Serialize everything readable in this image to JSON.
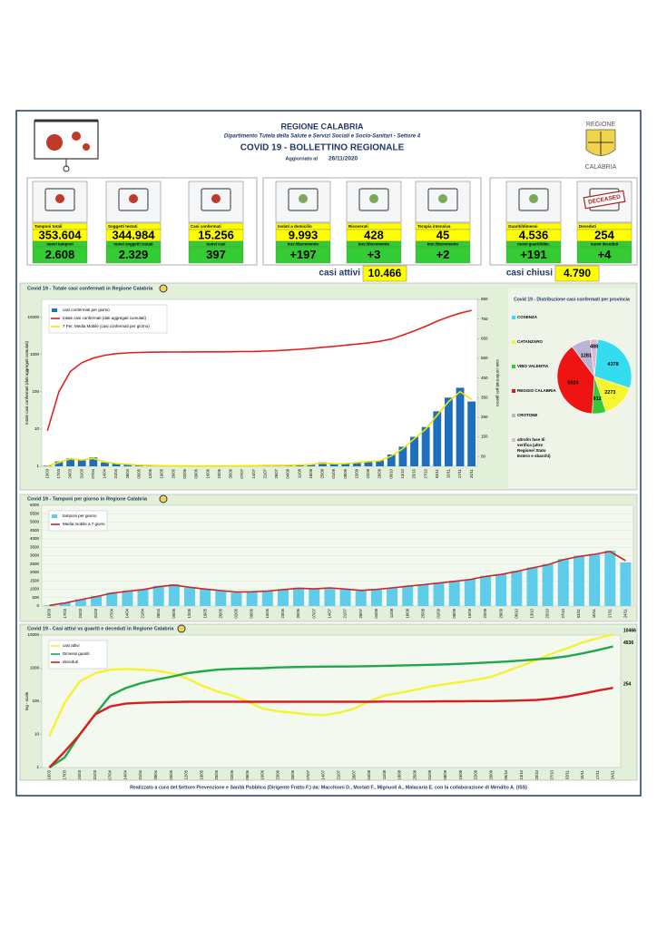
{
  "header": {
    "title": "REGIONE CALABRIA",
    "department": "Dipartimento Tutela della Salute e Servizi Sociali e Socio-Sanitari - Settore 4",
    "bulletin": "COVID 19 - BOLLETTINO REGIONALE",
    "updated_label": "Aggiornato al",
    "date": "26/11/2020",
    "logo_top": "REGIONE",
    "logo_bottom": "CALABRIA"
  },
  "stats": {
    "boxes": [
      {
        "label": "Tamponi totali",
        "value": "353.604",
        "sub_label": "nuovi tamponi",
        "sub_value": "2.608"
      },
      {
        "label": "Soggetti testati",
        "value": "344.984",
        "sub_label": "nuovi soggetti testati",
        "sub_value": "2.329"
      },
      {
        "label": "Casi confermati",
        "value": "15.256",
        "sub_label": "nuovi casi",
        "sub_value": "397"
      },
      {
        "label": "Isolati a domicilio",
        "value": "9.993",
        "sub_label": "Incr./decremento",
        "sub_value": "+197"
      },
      {
        "label": "Ricoverati",
        "value": "428",
        "sub_label": "Incr./decremento",
        "sub_value": "+3"
      },
      {
        "label": "Terapia intensiva",
        "value": "45",
        "sub_label": "Incr./decremento",
        "sub_value": "+2"
      },
      {
        "label": "Guariti/dimessi",
        "value": "4.536",
        "sub_label": "nuovi guariti/dim.",
        "sub_value": "+191"
      },
      {
        "label": "Deceduti",
        "value": "254",
        "sub_label": "nuovi deceduti",
        "sub_value": "+4",
        "stamp": "DECEASED"
      }
    ],
    "active": {
      "label": "casi attivi",
      "value": "10.466"
    },
    "closed": {
      "label": "casi chiusi",
      "value": "4.790"
    }
  },
  "footer": "Realizzato a cura del Settore Prevenzione e Sanità Pubblica (Dirigente Fratto F.) da: Macchioni D., Mortati F., Mignuoli A., Malacaria E. con la collaborazione di Mendito A. (ISS)",
  "chart_data": [
    {
      "type": "combo",
      "title": "Covid 19 - Totale casi confermati in Regione Calabria",
      "ylabel": "totale casi confermati (dati aggregati cumulati)",
      "y2label": "casi confermati per giorno",
      "categories": [
        "10/03",
        "17/03",
        "24/03",
        "31/03",
        "07/04",
        "14/04",
        "21/04",
        "28/04",
        "05/05",
        "12/05",
        "19/05",
        "26/05",
        "02/06",
        "09/06",
        "16/06",
        "23/06",
        "30/06",
        "07/07",
        "14/07",
        "21/07",
        "28/07",
        "04/08",
        "11/08",
        "18/08",
        "25/08",
        "01/09",
        "08/09",
        "15/09",
        "22/09",
        "29/09",
        "06/10",
        "13/10",
        "20/10",
        "27/10",
        "03/11",
        "10/11",
        "17/11",
        "24/11"
      ],
      "ylog": true,
      "ylim": [
        1,
        30000
      ],
      "yticks": [
        1,
        10,
        100,
        1000,
        10000
      ],
      "y2lim": [
        0,
        850
      ],
      "y2ticks": [
        50,
        150,
        250,
        350,
        450,
        550,
        650,
        750,
        850
      ],
      "legend": "upper left",
      "grid": false,
      "series": [
        {
          "name": "casi confermati per giorno",
          "type": "bar",
          "axis": "y2",
          "color": "#1f6fbf",
          "values": [
            3,
            25,
            40,
            30,
            45,
            20,
            15,
            10,
            5,
            5,
            3,
            2,
            2,
            1,
            2,
            1,
            2,
            3,
            3,
            5,
            4,
            5,
            8,
            10,
            20,
            12,
            15,
            20,
            25,
            30,
            60,
            100,
            150,
            200,
            280,
            350,
            400,
            330
          ]
        },
        {
          "name": "totale casi confermati (dati aggregati cumulati)",
          "type": "line",
          "color": "#e02020",
          "values": [
            9,
            100,
            350,
            600,
            800,
            950,
            1050,
            1100,
            1130,
            1150,
            1160,
            1165,
            1170,
            1172,
            1175,
            1180,
            1185,
            1195,
            1205,
            1230,
            1260,
            1320,
            1380,
            1450,
            1560,
            1650,
            1770,
            1900,
            2050,
            2250,
            2600,
            3300,
            4300,
            5700,
            7800,
            10200,
            12800,
            15256
          ]
        },
        {
          "name": "7 Per. Media Mobile (casi confermati per giorno)",
          "type": "line",
          "axis": "y2",
          "color": "#f2e400",
          "values": [
            2,
            20,
            38,
            32,
            40,
            22,
            14,
            10,
            6,
            4,
            3,
            2,
            2,
            1,
            2,
            1,
            2,
            3,
            3,
            4,
            4,
            5,
            7,
            9,
            16,
            13,
            14,
            19,
            24,
            28,
            52,
            90,
            140,
            190,
            260,
            330,
            380,
            340
          ]
        }
      ]
    },
    {
      "type": "pie",
      "title": "Covid 19 - Distribuzione casi confermati per provincia",
      "categories": [
        "COSENZA",
        "CATANZARO",
        "VIBO VALENTIA",
        "REGGIO CALABRIA",
        "CROTONE",
        "altro/in fase di verifica (altre Regione/ Stato Estero e sbarchi)"
      ],
      "values": [
        4378,
        2273,
        912,
        5924,
        1281,
        488
      ],
      "colors": [
        "#35dcef",
        "#f6f630",
        "#36c936",
        "#ee1414",
        "#b9b4d6",
        "#dcb8d2"
      ]
    },
    {
      "type": "combo",
      "title": "Covid 19 - Tamponi per giorno in Regione Calabria",
      "categories": [
        "10/03",
        "17/03",
        "24/03",
        "31/03",
        "07/04",
        "14/04",
        "21/04",
        "28/04",
        "05/05",
        "12/05",
        "19/05",
        "26/05",
        "02/06",
        "09/06",
        "16/06",
        "23/06",
        "30/06",
        "07/07",
        "14/07",
        "21/07",
        "28/07",
        "04/08",
        "11/08",
        "18/08",
        "25/08",
        "01/09",
        "08/09",
        "15/09",
        "22/09",
        "29/09",
        "06/10",
        "13/10",
        "20/10",
        "27/10",
        "03/11",
        "10/11",
        "17/11",
        "24/11"
      ],
      "ylog": false,
      "ylim": [
        0,
        6000
      ],
      "yticks": [
        0,
        500,
        1000,
        1500,
        2000,
        2500,
        3000,
        3500,
        4000,
        4500,
        5000,
        5500,
        6000
      ],
      "legend": "upper left",
      "grid": true,
      "series": [
        {
          "name": "tamponi per giorno",
          "type": "bar",
          "color": "#5fcdea",
          "values": [
            50,
            200,
            400,
            600,
            800,
            900,
            1000,
            1200,
            1300,
            1100,
            1000,
            900,
            800,
            850,
            900,
            1000,
            1100,
            1000,
            1100,
            1000,
            900,
            1000,
            1100,
            1200,
            1300,
            1400,
            1500,
            1600,
            1800,
            1900,
            2100,
            2300,
            2500,
            2800,
            3000,
            3100,
            3300,
            2600
          ]
        },
        {
          "name": "Media mobile a 7 giorni",
          "type": "line",
          "color": "#c82828",
          "values": [
            40,
            180,
            380,
            560,
            760,
            880,
            980,
            1150,
            1250,
            1120,
            1010,
            920,
            830,
            850,
            890,
            980,
            1060,
            1020,
            1080,
            1010,
            930,
            990,
            1080,
            1180,
            1270,
            1370,
            1470,
            1580,
            1760,
            1880,
            2060,
            2270,
            2460,
            2760,
            2950,
            3080,
            3250,
            2700
          ]
        }
      ]
    },
    {
      "type": "combo",
      "title": "Covid 19 - Casi attivi vs guariti e deceduti in Regione Calabria",
      "ylabel": "log - scale",
      "categories": [
        "10/03",
        "17/03",
        "24/03",
        "31/03",
        "07/04",
        "14/04",
        "21/04",
        "28/04",
        "05/05",
        "12/05",
        "19/05",
        "26/05",
        "02/06",
        "09/06",
        "16/06",
        "23/06",
        "30/06",
        "07/07",
        "14/07",
        "21/07",
        "28/07",
        "04/08",
        "11/08",
        "18/08",
        "25/08",
        "01/09",
        "08/09",
        "15/09",
        "22/09",
        "29/09",
        "06/10",
        "13/10",
        "20/10",
        "27/10",
        "03/11",
        "10/11",
        "17/11",
        "24/11"
      ],
      "ylog": true,
      "ylim": [
        1,
        10000
      ],
      "yticks": [
        1,
        10,
        100,
        1000,
        10000
      ],
      "legend": "upper left",
      "grid": false,
      "end_labels": true,
      "series": [
        {
          "name": "casi attivi",
          "type": "line",
          "color": "#f4f232",
          "values": [
            9,
            90,
            400,
            700,
            900,
            950,
            900,
            850,
            700,
            500,
            300,
            200,
            150,
            100,
            60,
            50,
            45,
            40,
            38,
            45,
            60,
            100,
            150,
            180,
            220,
            280,
            330,
            380,
            450,
            550,
            800,
            1200,
            1800,
            2800,
            4000,
            6000,
            8000,
            10466
          ]
        },
        {
          "name": "Dimessi guariti",
          "type": "line",
          "color": "#1fa84a",
          "values": [
            1,
            2,
            10,
            40,
            150,
            250,
            350,
            450,
            550,
            700,
            800,
            900,
            950,
            980,
            1000,
            1050,
            1080,
            1100,
            1110,
            1120,
            1130,
            1150,
            1180,
            1200,
            1230,
            1260,
            1300,
            1350,
            1420,
            1500,
            1580,
            1700,
            1850,
            2000,
            2300,
            2800,
            3500,
            4536
          ]
        },
        {
          "name": "deceduti",
          "type": "line",
          "color": "#d81e1e",
          "values": [
            1,
            3,
            10,
            40,
            70,
            85,
            90,
            93,
            95,
            97,
            97,
            97,
            97,
            97,
            97,
            97,
            97,
            97,
            97,
            97,
            97,
            97,
            98,
            98,
            98,
            99,
            100,
            100,
            101,
            101,
            103,
            106,
            110,
            120,
            140,
            170,
            210,
            254
          ]
        }
      ]
    }
  ]
}
